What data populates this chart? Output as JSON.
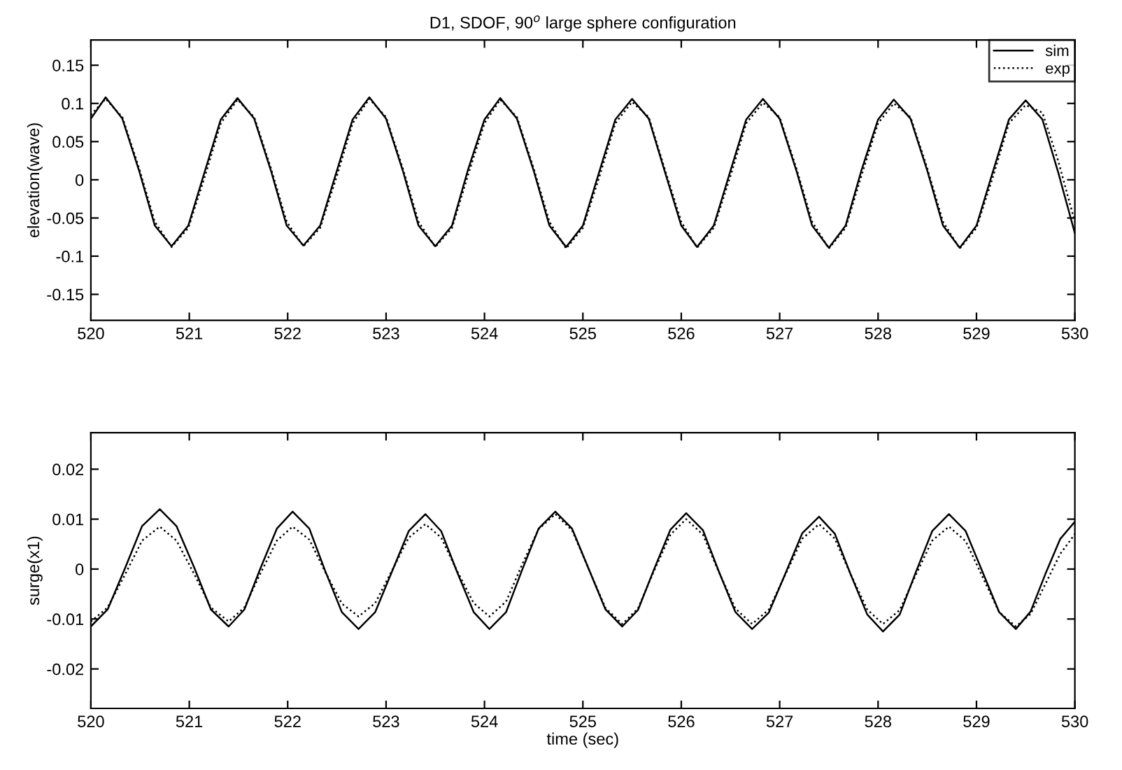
{
  "chart_data": [
    {
      "type": "line",
      "title": "D1, SDOF, 90$^{o}$ large sphere configuration",
      "ylabel": "elevation(wave)",
      "xlim": [
        520,
        530
      ],
      "xticks": [
        520,
        521,
        522,
        523,
        524,
        525,
        526,
        527,
        528,
        529,
        530
      ],
      "ylim": [
        -0.184,
        0.183
      ],
      "yticks": [
        -0.15,
        -0.1,
        -0.05,
        0,
        0.05,
        0.1,
        0.15
      ],
      "grid": false,
      "legend": "top right",
      "marker": "none",
      "x": [
        520,
        520.15,
        520.32,
        520.49,
        520.65,
        520.82,
        520.99,
        521.16,
        521.32,
        521.49,
        521.66,
        521.83,
        521.99,
        522.16,
        522.33,
        522.5,
        522.66,
        522.83,
        523.0,
        523.17,
        523.33,
        523.5,
        523.67,
        523.83,
        524.0,
        524.16,
        524.33,
        524.5,
        524.66,
        524.83,
        525.0,
        525.17,
        525.33,
        525.5,
        525.67,
        525.83,
        526.0,
        526.16,
        526.33,
        526.5,
        526.66,
        526.83,
        527.0,
        527.17,
        527.33,
        527.5,
        527.67,
        527.83,
        528.0,
        528.16,
        528.33,
        528.5,
        528.66,
        528.83,
        529.0,
        529.17,
        529.33,
        529.5,
        529.67,
        529.83,
        530.0
      ],
      "series": [
        {
          "name": "sim",
          "color": "#000000",
          "line_style": "solid",
          "values": [
            0.08,
            0.108,
            0.08,
            0.012,
            -0.06,
            -0.087,
            -0.06,
            0.012,
            0.079,
            0.107,
            0.08,
            0.012,
            -0.06,
            -0.086,
            -0.06,
            0.012,
            0.079,
            0.108,
            0.08,
            0.012,
            -0.06,
            -0.087,
            -0.06,
            0.012,
            0.079,
            0.107,
            0.08,
            0.012,
            -0.06,
            -0.088,
            -0.06,
            0.012,
            0.079,
            0.106,
            0.08,
            0.012,
            -0.06,
            -0.088,
            -0.06,
            0.012,
            0.079,
            0.106,
            0.08,
            0.012,
            -0.06,
            -0.089,
            -0.06,
            0.012,
            0.079,
            0.105,
            0.08,
            0.012,
            -0.06,
            -0.089,
            -0.06,
            0.012,
            0.079,
            0.104,
            0.079,
            0.01,
            -0.07
          ]
        },
        {
          "name": "exp",
          "color": "#000000",
          "line_style": "dotted",
          "values": [
            0.085,
            0.106,
            0.082,
            0.015,
            -0.055,
            -0.088,
            -0.063,
            0.005,
            0.074,
            0.105,
            0.082,
            0.015,
            -0.055,
            -0.087,
            -0.063,
            0.005,
            0.074,
            0.106,
            0.082,
            0.015,
            -0.055,
            -0.088,
            -0.063,
            0.005,
            0.074,
            0.105,
            0.082,
            0.015,
            -0.055,
            -0.09,
            -0.063,
            0.005,
            0.074,
            0.102,
            0.082,
            0.015,
            -0.055,
            -0.089,
            -0.063,
            0.005,
            0.074,
            0.101,
            0.082,
            0.015,
            -0.055,
            -0.09,
            -0.063,
            0.005,
            0.074,
            0.1,
            0.082,
            0.015,
            -0.055,
            -0.09,
            -0.063,
            0.005,
            0.074,
            0.098,
            0.088,
            0.025,
            -0.055
          ]
        }
      ]
    },
    {
      "type": "line",
      "ylabel": "surge(x1)",
      "xlabel": "time (sec)",
      "xlim": [
        520,
        530
      ],
      "xticks": [
        520,
        521,
        522,
        523,
        524,
        525,
        526,
        527,
        528,
        529,
        530
      ],
      "ylim": [
        -0.0279,
        0.0273
      ],
      "yticks": [
        -0.02,
        -0.01,
        0,
        0.01,
        0.02
      ],
      "grid": false,
      "marker": "none",
      "x": [
        520,
        520.17,
        520.35,
        520.52,
        520.7,
        520.87,
        521.05,
        521.22,
        521.4,
        521.56,
        521.72,
        521.89,
        522.05,
        522.22,
        522.38,
        522.55,
        522.72,
        522.89,
        523.06,
        523.23,
        523.4,
        523.56,
        523.72,
        523.89,
        524.05,
        524.22,
        524.38,
        524.55,
        524.72,
        524.89,
        525.06,
        525.23,
        525.4,
        525.56,
        525.72,
        525.89,
        526.05,
        526.22,
        526.38,
        526.55,
        526.72,
        526.89,
        527.06,
        527.23,
        527.4,
        527.56,
        527.72,
        527.89,
        528.05,
        528.22,
        528.38,
        528.55,
        528.72,
        528.89,
        529.06,
        529.23,
        529.4,
        529.55,
        529.7,
        529.85,
        530
      ],
      "series": [
        {
          "color": "#000000",
          "line_style": "solid",
          "values": [
            -0.0115,
            -0.0081,
            0.0003,
            0.0086,
            0.012,
            0.0086,
            0.0003,
            -0.0081,
            -0.0115,
            -0.0081,
            0,
            0.0081,
            0.0115,
            0.0081,
            -0.0003,
            -0.0086,
            -0.012,
            -0.0086,
            -0.0005,
            0.0076,
            0.011,
            0.0076,
            -0.0005,
            -0.0086,
            -0.012,
            -0.0086,
            -0.0003,
            0.0081,
            0.0115,
            0.0081,
            0,
            -0.0081,
            -0.0115,
            -0.0082,
            -0.0002,
            0.0079,
            0.0112,
            0.0078,
            -0.0004,
            -0.0086,
            -0.012,
            -0.0087,
            -0.0008,
            0.0072,
            0.0105,
            0.0071,
            -0.001,
            -0.0091,
            -0.0125,
            -0.0091,
            -0.0008,
            0.0076,
            0.011,
            0.0076,
            -0.0005,
            -0.0086,
            -0.012,
            -0.0085,
            -0.001,
            0.006,
            0.0095
          ]
        },
        {
          "color": "#000000",
          "line_style": "dotted",
          "values": [
            -0.0105,
            -0.0077,
            -0.001,
            0.0057,
            0.0085,
            0.0057,
            -0.001,
            -0.0077,
            -0.0105,
            -0.0077,
            -0.001,
            0.0057,
            0.0085,
            0.0059,
            -0.0005,
            -0.0069,
            -0.0095,
            -0.0068,
            -0.0003,
            0.0063,
            0.009,
            0.0063,
            -0.0003,
            -0.0068,
            -0.0095,
            -0.0065,
            0.0008,
            0.008,
            0.011,
            0.0078,
            0,
            -0.0078,
            -0.011,
            -0.0079,
            -0.0005,
            0.0069,
            0.01,
            0.0069,
            -0.0005,
            -0.0079,
            -0.011,
            -0.0081,
            -0.001,
            0.0061,
            0.009,
            0.0061,
            -0.001,
            -0.0081,
            -0.011,
            -0.0082,
            -0.0013,
            0.0057,
            0.0085,
            0.0056,
            -0.0015,
            -0.0086,
            -0.0115,
            -0.009,
            -0.003,
            0.003,
            0.007
          ]
        }
      ]
    }
  ]
}
